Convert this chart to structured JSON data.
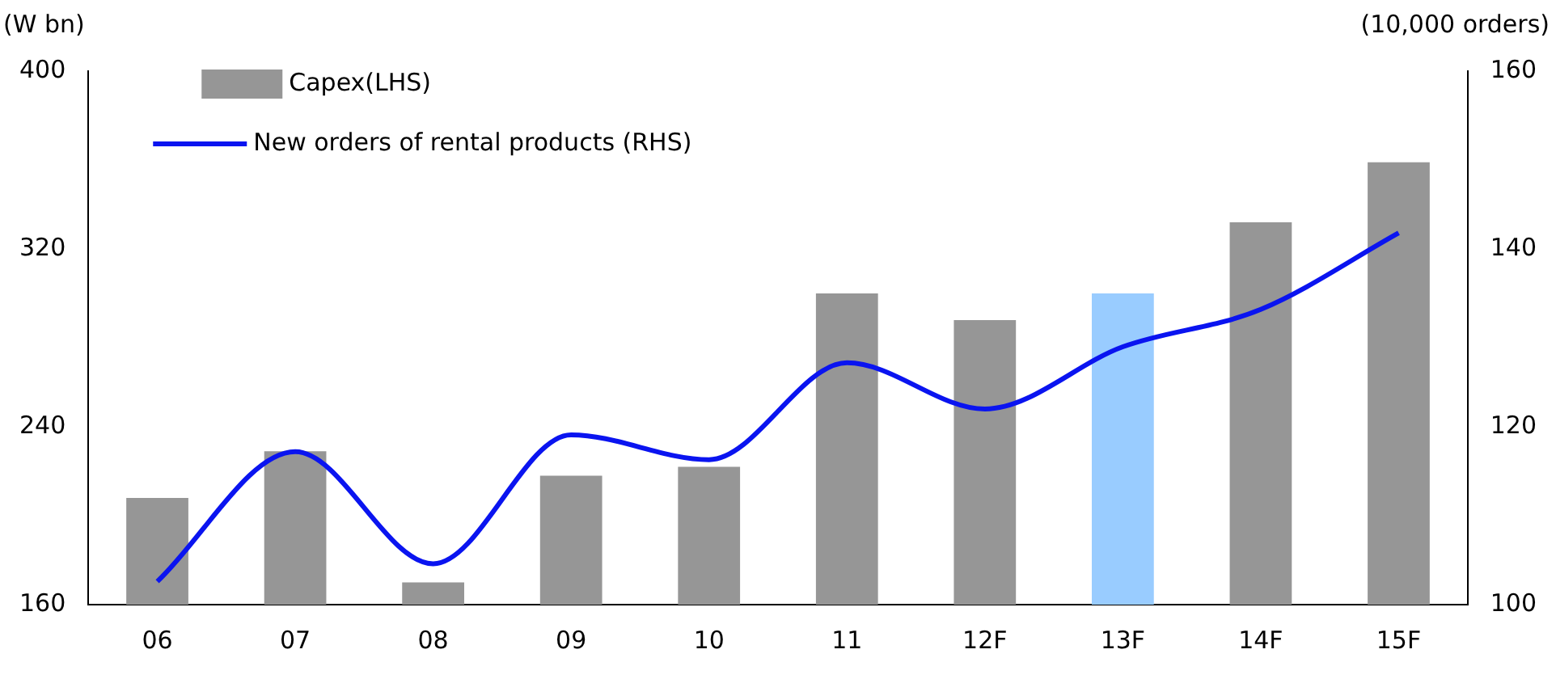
{
  "chart_data": {
    "type": "bar",
    "ylabel": "(W bn)",
    "y2label": "(10,000 orders)",
    "categories": [
      "06",
      "07",
      "08",
      "09",
      "10",
      "11",
      "12F",
      "13F",
      "14F",
      "15F"
    ],
    "series": [
      {
        "name": "Capex(LHS)",
        "color": "#969696",
        "colors": [
          "#969696",
          "#969696",
          "#969696",
          "#969696",
          "#969696",
          "#969696",
          "#969696",
          "#99ccff",
          "#969696",
          "#969696"
        ],
        "values": [
          208,
          229,
          170,
          218,
          222,
          300,
          288,
          300,
          332,
          359
        ]
      },
      {
        "name": "New orders of rental products (RHS)",
        "type": "line",
        "axis": "y2",
        "color": "#0a14f0",
        "values": [
          102.6,
          117.2,
          104.6,
          119.1,
          116.3,
          127.2,
          122.0,
          129.0,
          133.2,
          141.8
        ]
      }
    ],
    "ylim": [
      160,
      400
    ],
    "yticks": [
      160,
      240,
      320,
      400
    ],
    "y2lim": [
      100,
      160
    ],
    "y2ticks": [
      100,
      120,
      140,
      160
    ],
    "grid": false,
    "legend": "top left",
    "marker": "none",
    "line_style": "solid"
  }
}
